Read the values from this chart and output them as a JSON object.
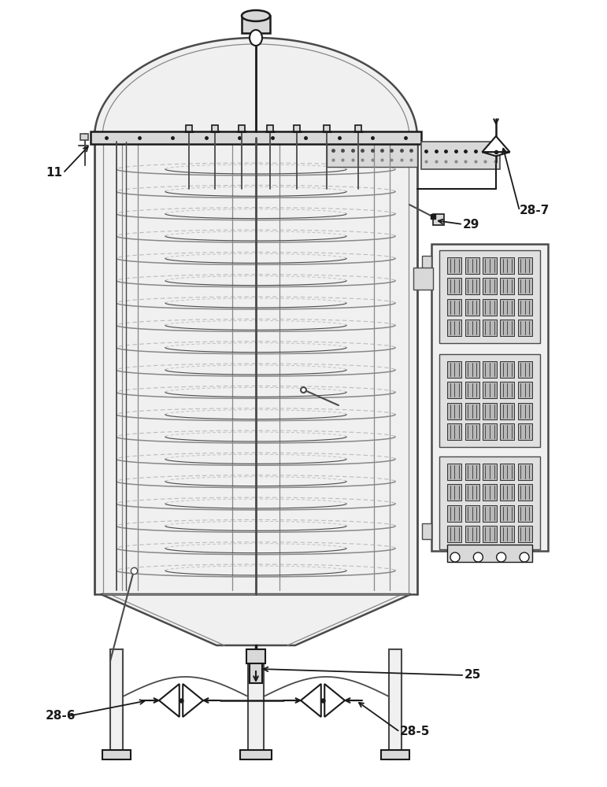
{
  "bg_color": "#ffffff",
  "line_color": "#4a4a4a",
  "dark_line": "#1a1a1a",
  "light_line": "#888888",
  "very_light": "#bbbbbb",
  "fill_vessel": "#f0f0f0",
  "fill_medium": "#d8d8d8",
  "fill_dark": "#b8b8b8",
  "fill_panel": "#e0e0e0",
  "label_fontsize": 10,
  "label_fontweight": "bold"
}
